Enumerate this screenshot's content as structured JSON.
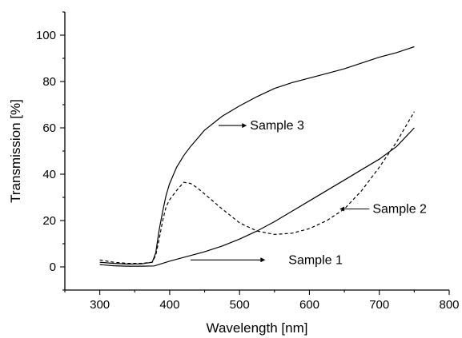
{
  "chart_data": {
    "type": "line",
    "xlabel": "Wavelength [nm]",
    "ylabel": "Transmission [%]",
    "xlim": [
      250,
      800
    ],
    "ylim": [
      -10,
      110
    ],
    "x_ticks": [
      300,
      400,
      500,
      600,
      700,
      800
    ],
    "y_ticks": [
      0,
      20,
      40,
      60,
      80,
      100
    ],
    "grid": false,
    "series": [
      {
        "name": "Sample 1",
        "style": "solid",
        "x": [
          300,
          320,
          340,
          360,
          378,
          390,
          400,
          425,
          450,
          475,
          500,
          525,
          550,
          575,
          600,
          625,
          650,
          675,
          700,
          725,
          750
        ],
        "y": [
          1,
          0.5,
          0.3,
          0.3,
          0.4,
          1.5,
          2.5,
          4.5,
          6.5,
          9,
          12,
          15.5,
          19.5,
          24,
          28.5,
          33,
          37.5,
          42,
          46.5,
          52,
          60
        ]
      },
      {
        "name": "Sample 2",
        "style": "dashed",
        "x": [
          300,
          320,
          340,
          360,
          375,
          380,
          385,
          390,
          395,
          400,
          410,
          420,
          430,
          440,
          450,
          475,
          500,
          525,
          550,
          575,
          600,
          625,
          650,
          675,
          700,
          725,
          750
        ],
        "y": [
          3,
          2,
          1.5,
          1.5,
          2,
          5,
          12,
          20,
          26,
          29,
          33,
          36.5,
          36,
          34,
          31.5,
          25,
          19,
          15.5,
          14,
          14.5,
          16.5,
          20,
          25,
          33,
          43,
          54,
          67
        ]
      },
      {
        "name": "Sample 3",
        "style": "solid",
        "x": [
          300,
          320,
          340,
          360,
          375,
          380,
          385,
          390,
          395,
          400,
          410,
          420,
          430,
          440,
          450,
          475,
          500,
          525,
          550,
          575,
          600,
          625,
          650,
          675,
          700,
          725,
          750
        ],
        "y": [
          2,
          1.5,
          1.2,
          1.3,
          2,
          6,
          16,
          24,
          31,
          36,
          43,
          48,
          52,
          55.5,
          59,
          65,
          69.5,
          73.5,
          77,
          79.5,
          81.5,
          83.5,
          85.5,
          88,
          90.5,
          92.5,
          95
        ]
      }
    ],
    "annotations": [
      {
        "text": "Sample 3",
        "x": 515,
        "y": 61,
        "arrow_from": [
          560,
          61
        ],
        "arrow_to": [
          470,
          61
        ]
      },
      {
        "text": "Sample 2",
        "x": 695,
        "y": 25,
        "arrow_from": [
          695,
          25
        ],
        "arrow_to": [
          650,
          25
        ]
      },
      {
        "text": "Sample 1",
        "x": 570,
        "y": 3,
        "arrow_from": [
          530,
          3
        ],
        "arrow_to": [
          430,
          3
        ]
      }
    ]
  }
}
